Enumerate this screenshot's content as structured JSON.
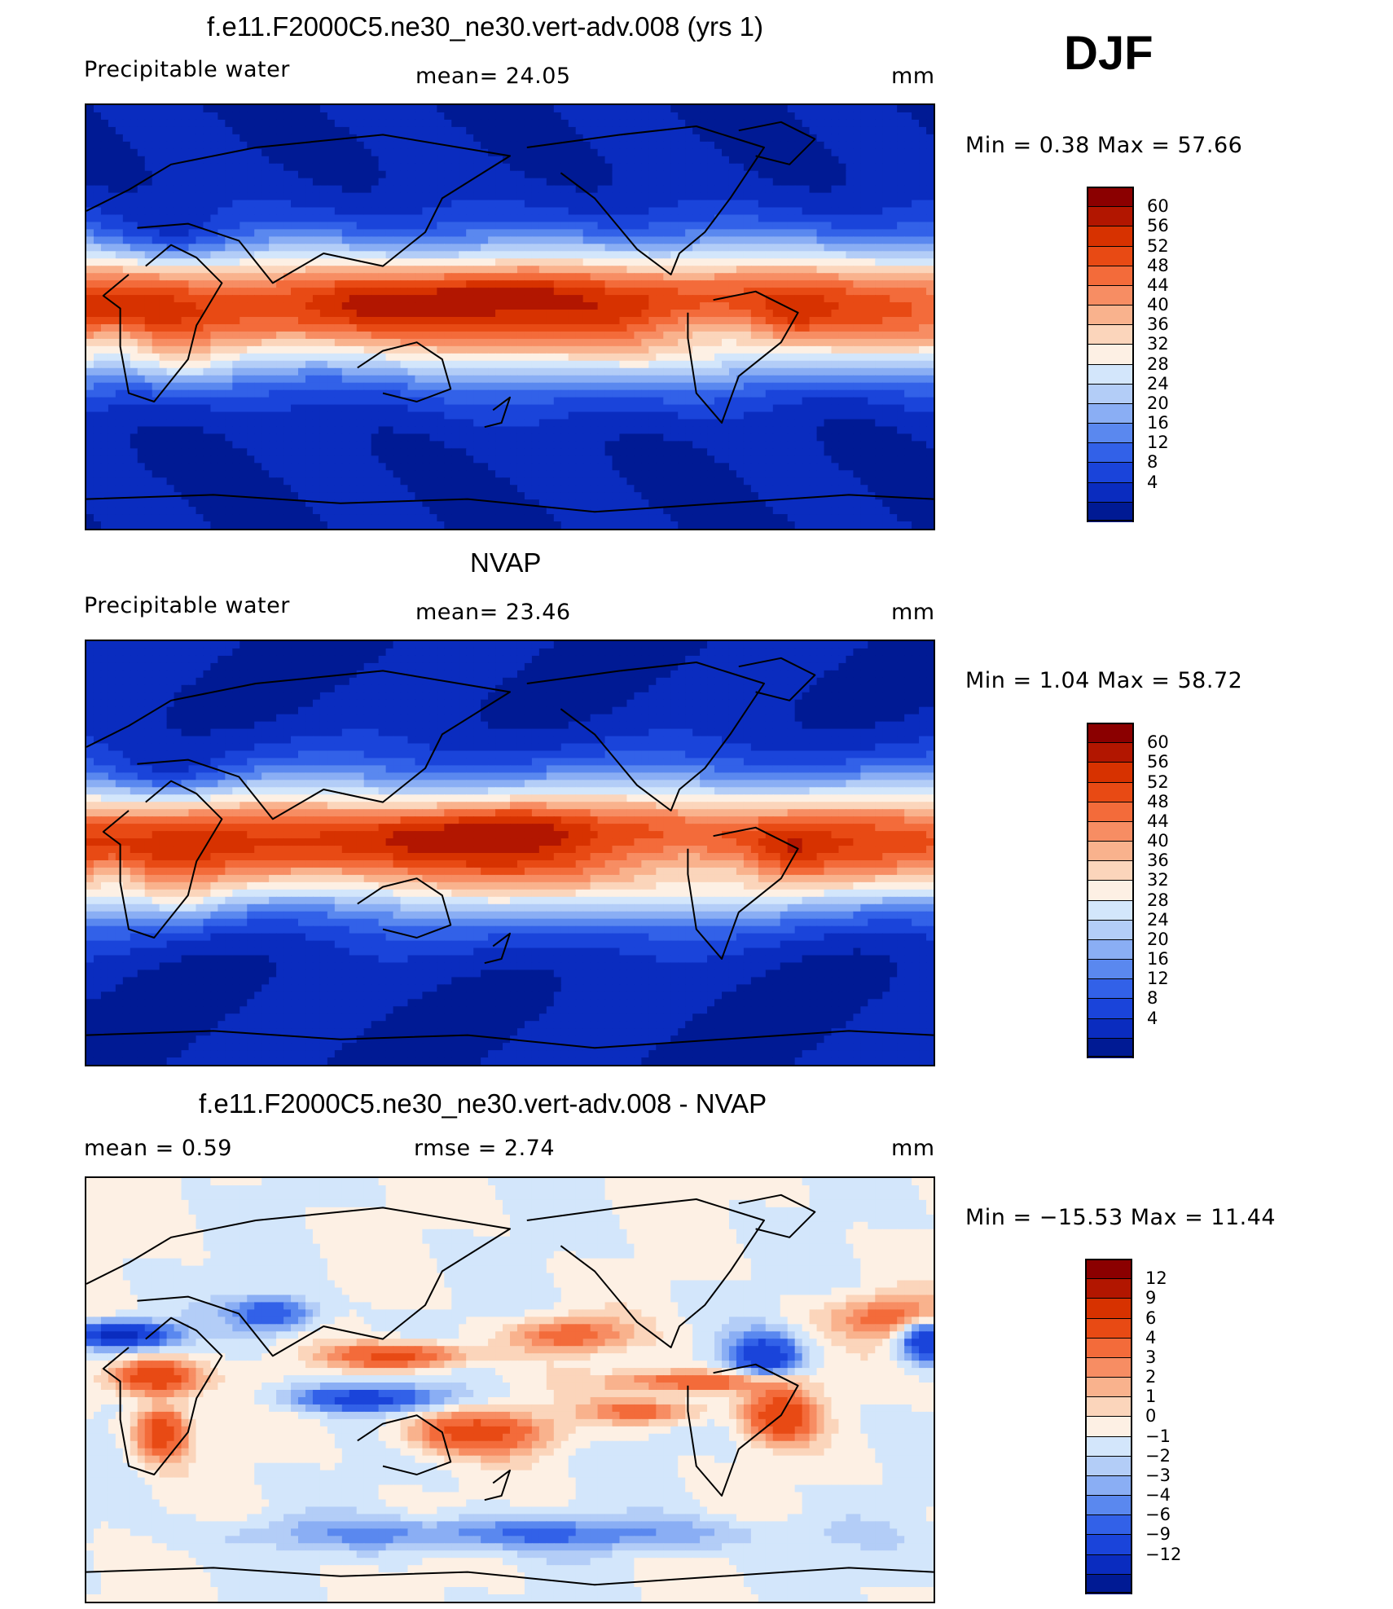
{
  "season_label": "DJF",
  "panels": [
    {
      "id": "model",
      "title": "f.e11.F2000C5.ne30_ne30.vert-adv.008 (yrs 1)",
      "left_text": "Precipitable  water",
      "mid_text": "mean=   24.05",
      "right_text": "mm",
      "minmax_text": "Min  =     0.38  Max  =    57.66",
      "field": "model",
      "colorbar": {
        "labels": [
          "60",
          "56",
          "52",
          "48",
          "44",
          "40",
          "36",
          "32",
          "28",
          "24",
          "20",
          "16",
          "12",
          "8",
          "4"
        ],
        "colors": [
          "#8b0000",
          "#b21600",
          "#d73200",
          "#e84a14",
          "#f36b3a",
          "#f78d63",
          "#f9b28d",
          "#fbd5bb",
          "#fdf0e4",
          "#d3e6fb",
          "#b3cdf7",
          "#8aaef4",
          "#5a88ef",
          "#3261e8",
          "#1a44da",
          "#0a2cbf",
          "#001a94"
        ]
      }
    },
    {
      "id": "obs",
      "title": "NVAP",
      "left_text": "Precipitable  water",
      "mid_text": "mean=   23.46",
      "right_text": "mm",
      "minmax_text": "Min  =     1.04  Max  =    58.72",
      "field": "obs",
      "colorbar": {
        "labels": [
          "60",
          "56",
          "52",
          "48",
          "44",
          "40",
          "36",
          "32",
          "28",
          "24",
          "20",
          "16",
          "12",
          "8",
          "4"
        ],
        "colors": [
          "#8b0000",
          "#b21600",
          "#d73200",
          "#e84a14",
          "#f36b3a",
          "#f78d63",
          "#f9b28d",
          "#fbd5bb",
          "#fdf0e4",
          "#d3e6fb",
          "#b3cdf7",
          "#8aaef4",
          "#5a88ef",
          "#3261e8",
          "#1a44da",
          "#0a2cbf",
          "#001a94"
        ]
      }
    },
    {
      "id": "diff",
      "title": "f.e11.F2000C5.ne30_ne30.vert-adv.008 - NVAP",
      "left_text": "mean  =     0.59",
      "mid_text": "rmse  =     2.74",
      "right_text": "mm",
      "minmax_text": "Min  =  −15.53  Max  =    11.44",
      "field": "diff",
      "colorbar": {
        "labels": [
          "12",
          "9",
          "6",
          "4",
          "3",
          "2",
          "1",
          "0",
          "−1",
          "−2",
          "−3",
          "−4",
          "−6",
          "−9",
          "−12"
        ],
        "colors": [
          "#8b0000",
          "#b21600",
          "#d73200",
          "#e84a14",
          "#f36b3a",
          "#f78d63",
          "#f9b28d",
          "#fbd5bb",
          "#fdf0e4",
          "#d3e6fb",
          "#b3cdf7",
          "#8aaef4",
          "#5a88ef",
          "#3261e8",
          "#1a44da",
          "#0a2cbf",
          "#001a94"
        ]
      }
    }
  ]
}
